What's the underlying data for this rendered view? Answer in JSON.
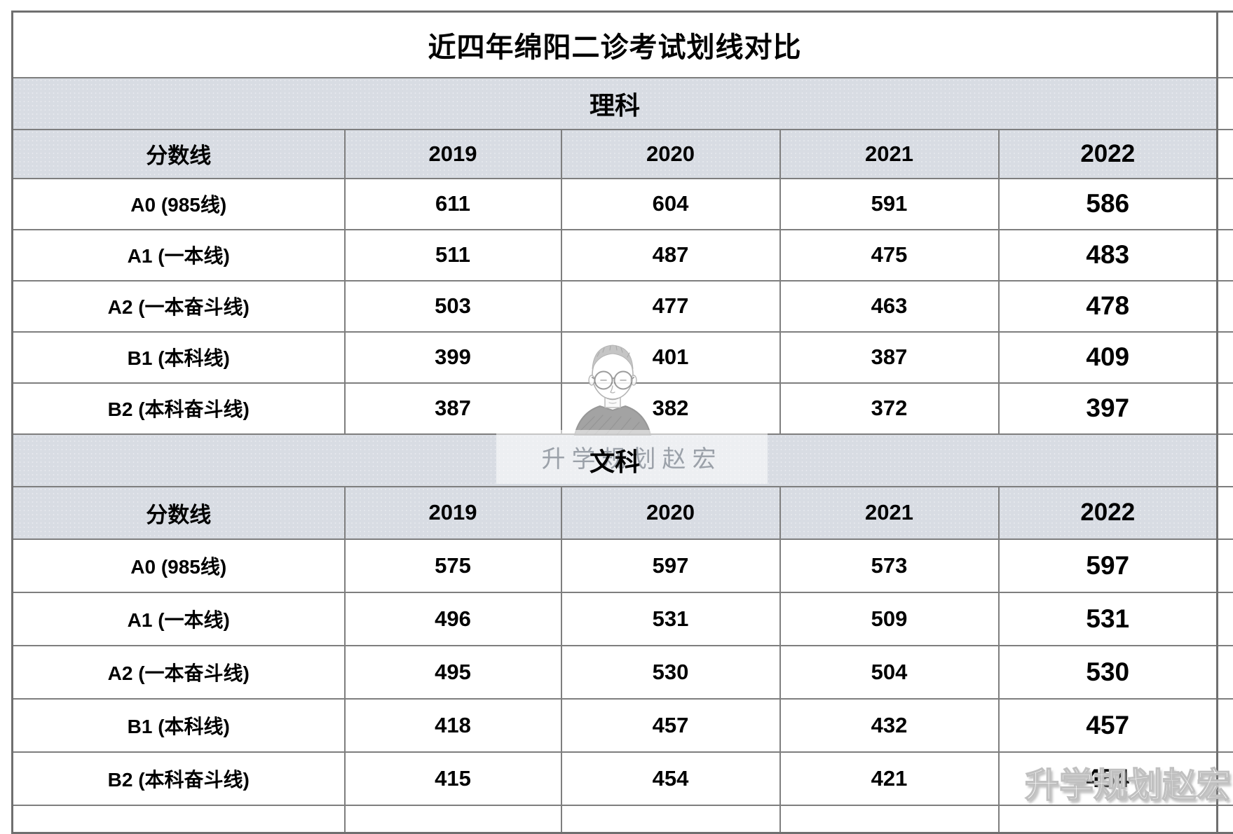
{
  "title": "近四年绵阳二诊考试划线对比",
  "columns": [
    "分数线",
    "2019",
    "2020",
    "2021",
    "2022"
  ],
  "sections": [
    {
      "name": "理科",
      "rows": [
        {
          "label": "A0 (985线)",
          "values": [
            "611",
            "604",
            "591",
            "586"
          ]
        },
        {
          "label": "A1 (一本线)",
          "values": [
            "511",
            "487",
            "475",
            "483"
          ]
        },
        {
          "label": "A2 (一本奋斗线)",
          "values": [
            "503",
            "477",
            "463",
            "478"
          ]
        },
        {
          "label": "B1 (本科线)",
          "values": [
            "399",
            "401",
            "387",
            "409"
          ]
        },
        {
          "label": "B2 (本科奋斗线)",
          "values": [
            "387",
            "382",
            "372",
            "397"
          ]
        }
      ],
      "dimmed_cells": [
        [
          3,
          1
        ],
        [
          4,
          1
        ]
      ]
    },
    {
      "name": "文科",
      "rows": [
        {
          "label": "A0 (985线)",
          "values": [
            "575",
            "597",
            "573",
            "597"
          ]
        },
        {
          "label": "A1 (一本线)",
          "values": [
            "496",
            "531",
            "509",
            "531"
          ]
        },
        {
          "label": "A2 (一本奋斗线)",
          "values": [
            "495",
            "530",
            "504",
            "530"
          ]
        },
        {
          "label": "B1 (本科线)",
          "values": [
            "418",
            "457",
            "432",
            "457"
          ]
        },
        {
          "label": "B2 (本科奋斗线)",
          "values": [
            "415",
            "454",
            "421",
            "454"
          ]
        }
      ],
      "dimmed_cells": []
    }
  ],
  "watermarks": {
    "center_text": "升学规划赵宏",
    "bottom_right_text": "升学规划赵宏",
    "avatar": "portrait-sketch-man-with-glasses"
  },
  "colors": {
    "accent_red": "#fe0000",
    "header_bg": "#d8dce3",
    "border_gray": "#7e7e7e",
    "dimmed_text": "#50555d",
    "watermark_gray": "#9ba1a9"
  },
  "chart_data": [
    {
      "type": "table",
      "title": "近四年绵阳二诊考试划线对比 — 理科",
      "columns": [
        "分数线",
        "2019",
        "2020",
        "2021",
        "2022"
      ],
      "rows": [
        [
          "A0 (985线)",
          611,
          604,
          591,
          586
        ],
        [
          "A1 (一本线)",
          511,
          487,
          475,
          483
        ],
        [
          "A2 (一本奋斗线)",
          503,
          477,
          463,
          478
        ],
        [
          "B1 (本科线)",
          399,
          401,
          387,
          409
        ],
        [
          "B2 (本科奋斗线)",
          387,
          382,
          372,
          397
        ]
      ]
    },
    {
      "type": "table",
      "title": "近四年绵阳二诊考试划线对比 — 文科",
      "columns": [
        "分数线",
        "2019",
        "2020",
        "2021",
        "2022"
      ],
      "rows": [
        [
          "A0 (985线)",
          575,
          597,
          573,
          597
        ],
        [
          "A1 (一本线)",
          496,
          531,
          509,
          531
        ],
        [
          "A2 (一本奋斗线)",
          495,
          530,
          504,
          530
        ],
        [
          "B1 (本科线)",
          418,
          457,
          432,
          457
        ],
        [
          "B2 (本科奋斗线)",
          415,
          454,
          421,
          454
        ]
      ]
    }
  ]
}
